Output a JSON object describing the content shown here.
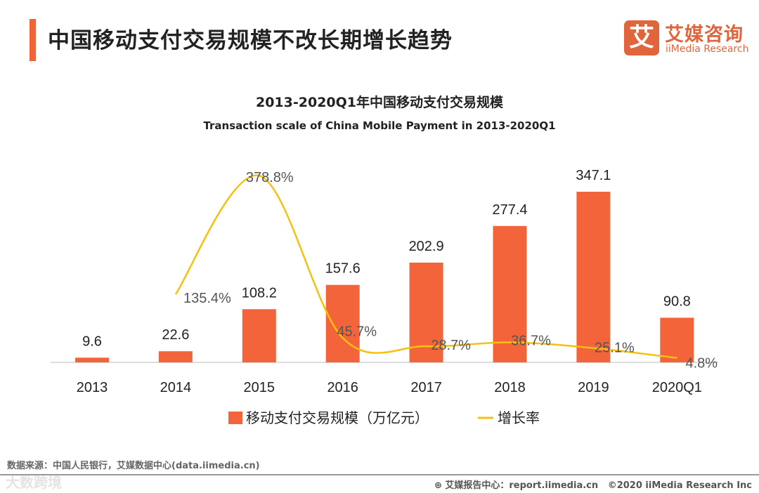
{
  "header": {
    "title": "中国移动支付交易规模不改长期增长趋势"
  },
  "logo": {
    "mark": "艾",
    "name_cn": "艾媒咨询",
    "name_en": "iiMedia Research"
  },
  "chart_data": {
    "type": "bar",
    "title": "2013-2020Q1年中国移动支付交易规模",
    "subtitle": "Transaction scale of China Mobile Payment in 2013-2020Q1",
    "categories": [
      "2013",
      "2014",
      "2015",
      "2016",
      "2017",
      "2018",
      "2019",
      "2020Q1"
    ],
    "series": [
      {
        "name": "移动支付交易规模（万亿元）",
        "type": "bar",
        "color": "#f4643a",
        "values": [
          9.6,
          22.6,
          108.2,
          157.6,
          202.9,
          277.4,
          347.1,
          90.8
        ],
        "labels": [
          "9.6",
          "22.6",
          "108.2",
          "157.6",
          "202.9",
          "277.4",
          "347.1",
          "90.8"
        ]
      },
      {
        "name": "增长率",
        "type": "line",
        "color": "#f6c010",
        "values": [
          null,
          135.4,
          378.8,
          45.7,
          28.7,
          36.7,
          25.1,
          4.8
        ],
        "labels": [
          null,
          "135.4%",
          "378.8%",
          "45.7%",
          "28.7%",
          "36.7%",
          "25.1%",
          "4.8%"
        ]
      }
    ],
    "legend": "bottom",
    "grid": false
  },
  "footer": {
    "source": "数据来源：中国人民银行，艾媒数据中心(data.iimedia.cn)",
    "report": "艾媒报告中心：report.iimedia.cn",
    "copyright": "©2020  iiMedia Research  Inc",
    "watermark": "大数跨境"
  }
}
